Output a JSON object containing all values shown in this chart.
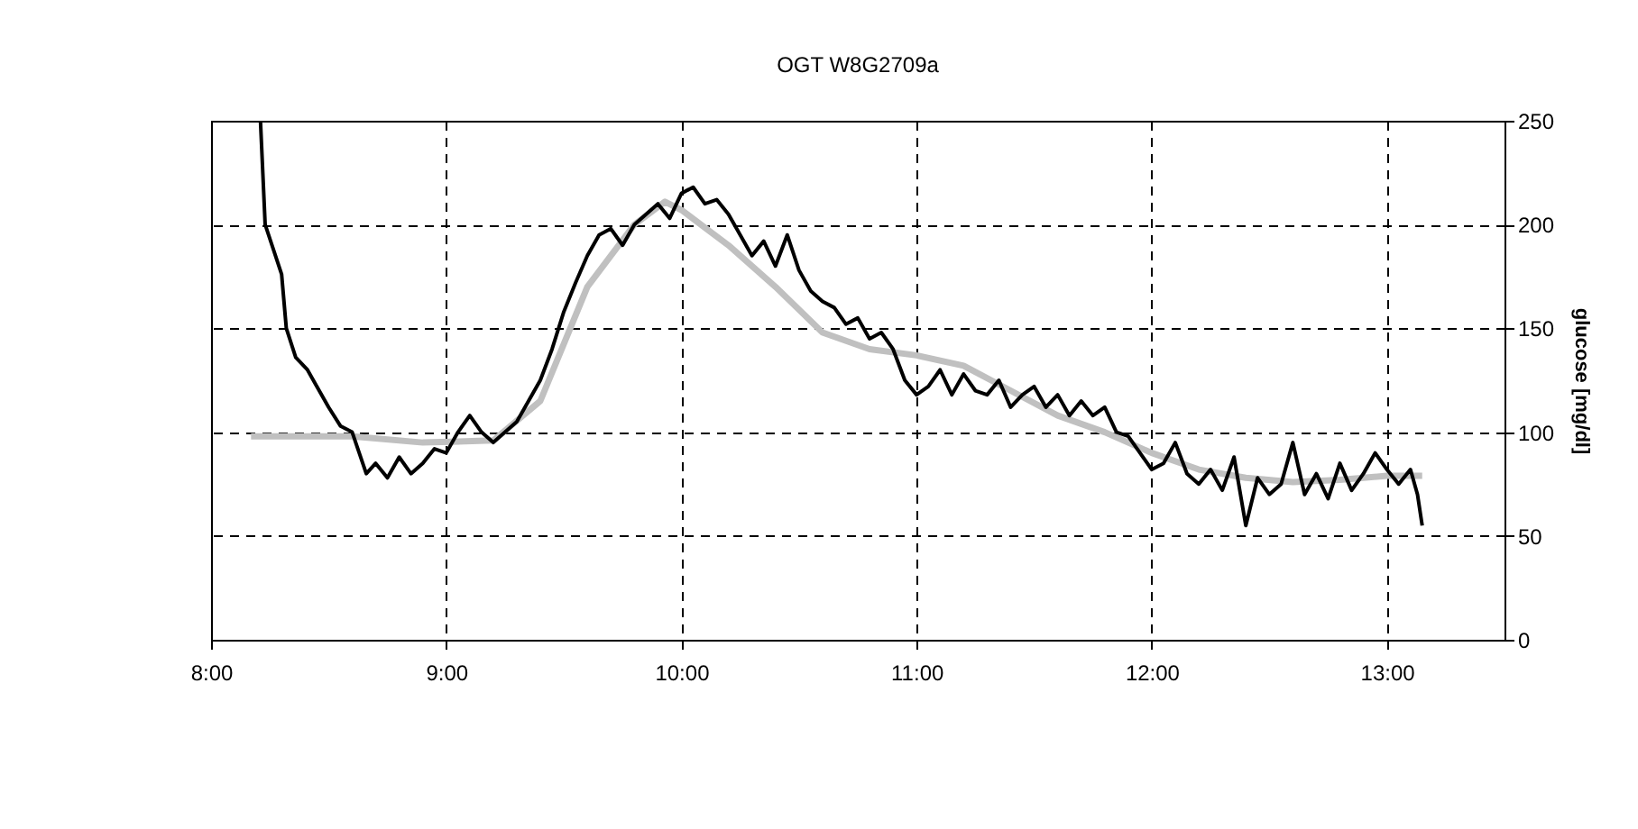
{
  "chart_data": {
    "type": "line",
    "title": "OGT W8G2709a",
    "ylabel": "glucose [mg/dl]",
    "xlim": [
      8,
      13.5
    ],
    "xticks": [
      {
        "value": 8,
        "label": "8:00"
      },
      {
        "value": 9,
        "label": "9:00"
      },
      {
        "value": 10,
        "label": "10:00"
      },
      {
        "value": 11,
        "label": "11:00"
      },
      {
        "value": 12,
        "label": "12:00"
      },
      {
        "value": 13,
        "label": "13:00"
      }
    ],
    "ylim": [
      0,
      250
    ],
    "yticks": [
      0,
      50,
      100,
      150,
      200,
      250
    ],
    "grid": true,
    "series": [
      {
        "color": "#000000",
        "x": [
          8.21,
          8.23,
          8.3,
          8.32,
          8.36,
          8.41,
          8.45,
          8.5,
          8.55,
          8.6,
          8.63,
          8.66,
          8.7,
          8.75,
          8.8,
          8.85,
          8.9,
          8.95,
          9.0,
          9.05,
          9.1,
          9.15,
          9.2,
          9.25,
          9.3,
          9.35,
          9.4,
          9.45,
          9.5,
          9.55,
          9.6,
          9.65,
          9.7,
          9.75,
          9.8,
          9.85,
          9.9,
          9.95,
          10.0,
          10.05,
          10.1,
          10.15,
          10.2,
          10.25,
          10.3,
          10.35,
          10.4,
          10.45,
          10.5,
          10.55,
          10.6,
          10.65,
          10.7,
          10.75,
          10.8,
          10.85,
          10.9,
          10.95,
          11.0,
          11.05,
          11.1,
          11.15,
          11.2,
          11.25,
          11.3,
          11.35,
          11.4,
          11.45,
          11.5,
          11.55,
          11.6,
          11.65,
          11.7,
          11.75,
          11.8,
          11.85,
          11.9,
          11.95,
          12.0,
          12.05,
          12.1,
          12.15,
          12.2,
          12.25,
          12.3,
          12.35,
          12.4,
          12.45,
          12.5,
          12.55,
          12.6,
          12.65,
          12.7,
          12.75,
          12.8,
          12.85,
          12.9,
          12.95,
          13.0,
          13.05,
          13.1,
          13.13,
          13.15
        ],
        "values": [
          250,
          200,
          176,
          150,
          136,
          130,
          122,
          112,
          103,
          100,
          90,
          80,
          85,
          78,
          88,
          80,
          85,
          92,
          90,
          100,
          108,
          100,
          95,
          100,
          105,
          115,
          125,
          140,
          158,
          172,
          185,
          195,
          198,
          190,
          200,
          205,
          210,
          203,
          215,
          218,
          210,
          212,
          205,
          195,
          185,
          192,
          180,
          195,
          178,
          168,
          163,
          160,
          152,
          155,
          145,
          148,
          140,
          125,
          118,
          122,
          130,
          118,
          128,
          120,
          118,
          125,
          112,
          118,
          122,
          112,
          118,
          108,
          115,
          108,
          112,
          100,
          98,
          90,
          82,
          85,
          95,
          80,
          75,
          82,
          72,
          88,
          55,
          78,
          70,
          75,
          95,
          70,
          80,
          68,
          85,
          72,
          80,
          90,
          82,
          75,
          82,
          70,
          55
        ]
      },
      {
        "color": "#c0c0c0",
        "x": [
          8.17,
          8.6,
          8.9,
          9.2,
          9.4,
          9.6,
          9.8,
          9.93,
          10.0,
          10.2,
          10.4,
          10.6,
          10.8,
          11.0,
          11.2,
          11.4,
          11.6,
          11.8,
          12.0,
          12.2,
          12.4,
          12.6,
          12.8,
          13.0,
          13.15
        ],
        "values": [
          98,
          98,
          95,
          96,
          115,
          170,
          200,
          211,
          207,
          190,
          170,
          148,
          140,
          137,
          132,
          120,
          108,
          100,
          90,
          82,
          78,
          76,
          77,
          79,
          79
        ]
      }
    ]
  }
}
